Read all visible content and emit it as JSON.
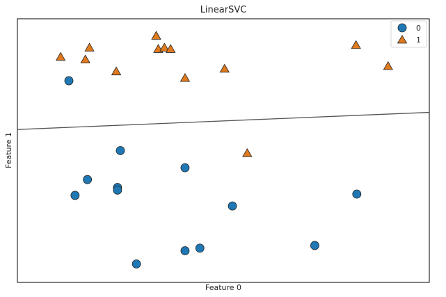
{
  "chart_data": {
    "type": "scatter",
    "title": "LinearSVC",
    "xlabel": "Feature 0",
    "ylabel": "Feature 1",
    "xlim": [
      0,
      100
    ],
    "ylim": [
      0,
      100
    ],
    "xticks": false,
    "yticks": false,
    "grid": false,
    "legend_position": "top-right",
    "series": [
      {
        "name": "0",
        "marker": "circle",
        "color": "#1f77b4",
        "points": [
          {
            "x": 12.5,
            "y": 76.5
          },
          {
            "x": 25.0,
            "y": 50.0
          },
          {
            "x": 17.0,
            "y": 39.0
          },
          {
            "x": 24.3,
            "y": 36.0
          },
          {
            "x": 24.3,
            "y": 35.0
          },
          {
            "x": 14.0,
            "y": 33.0
          },
          {
            "x": 40.7,
            "y": 43.5
          },
          {
            "x": 52.2,
            "y": 29.0
          },
          {
            "x": 82.4,
            "y": 33.5
          },
          {
            "x": 28.9,
            "y": 7.0
          },
          {
            "x": 40.7,
            "y": 12.0
          },
          {
            "x": 44.3,
            "y": 13.0
          },
          {
            "x": 72.2,
            "y": 14.0
          }
        ]
      },
      {
        "name": "1",
        "marker": "triangle",
        "color": "#e07a1e",
        "points": [
          {
            "x": 10.5,
            "y": 85.5
          },
          {
            "x": 16.5,
            "y": 84.5
          },
          {
            "x": 17.5,
            "y": 89.0
          },
          {
            "x": 24.0,
            "y": 80.0
          },
          {
            "x": 33.7,
            "y": 93.5
          },
          {
            "x": 34.2,
            "y": 88.5
          },
          {
            "x": 35.7,
            "y": 89.0
          },
          {
            "x": 37.2,
            "y": 88.5
          },
          {
            "x": 40.7,
            "y": 77.5
          },
          {
            "x": 50.3,
            "y": 81.0
          },
          {
            "x": 55.8,
            "y": 49.0
          },
          {
            "x": 82.2,
            "y": 90.0
          },
          {
            "x": 90.0,
            "y": 82.0
          }
        ]
      }
    ],
    "decision_boundary": {
      "color": "#555555",
      "points": [
        {
          "x": 0,
          "y": 58.0
        },
        {
          "x": 100,
          "y": 64.5
        }
      ]
    }
  }
}
